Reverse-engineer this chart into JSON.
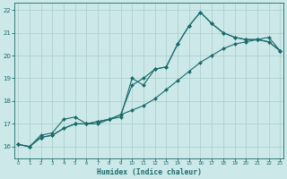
{
  "xlabel": "Humidex (Indice chaleur)",
  "xlim": [
    -0.3,
    23.3
  ],
  "ylim": [
    15.5,
    22.3
  ],
  "yticks": [
    16,
    17,
    18,
    19,
    20,
    21,
    22
  ],
  "xticks": [
    0,
    1,
    2,
    3,
    4,
    5,
    6,
    7,
    8,
    9,
    10,
    11,
    12,
    13,
    14,
    15,
    16,
    17,
    18,
    19,
    20,
    21,
    22,
    23
  ],
  "bg_color": "#cce8e8",
  "grid_color": "#aacccc",
  "line_color": "#1a6b6b",
  "curve1_x": [
    0,
    1,
    2,
    3,
    4,
    5,
    6,
    7,
    8,
    9,
    10,
    11,
    12,
    13,
    14,
    15,
    16,
    17,
    18,
    19,
    20,
    21,
    22,
    23
  ],
  "curve1_y": [
    16.1,
    16.0,
    16.5,
    16.6,
    17.2,
    17.3,
    17.0,
    17.0,
    17.2,
    17.3,
    19.0,
    18.7,
    19.4,
    19.5,
    20.5,
    21.3,
    21.9,
    21.4,
    21.0,
    20.8,
    20.7,
    20.7,
    20.6,
    20.2
  ],
  "curve2_x": [
    0,
    1,
    2,
    3,
    4,
    5,
    6,
    7,
    8,
    9,
    10,
    11,
    12,
    13,
    14,
    15,
    16,
    17,
    18,
    19,
    20,
    21,
    22,
    23
  ],
  "curve2_y": [
    16.1,
    16.0,
    16.4,
    16.5,
    16.8,
    17.0,
    17.0,
    17.1,
    17.2,
    17.4,
    17.6,
    17.8,
    18.1,
    18.5,
    18.9,
    19.3,
    19.7,
    20.0,
    20.3,
    20.5,
    20.6,
    20.7,
    20.8,
    20.2
  ],
  "curve3_x": [
    0,
    1,
    2,
    3,
    4,
    5,
    6,
    7,
    8,
    9,
    10,
    11,
    12,
    13,
    14,
    15,
    16,
    17,
    18,
    19,
    20,
    21,
    22,
    23
  ],
  "curve3_y": [
    16.1,
    16.0,
    16.4,
    16.5,
    16.8,
    17.0,
    17.0,
    17.1,
    17.2,
    17.4,
    18.7,
    19.0,
    19.4,
    19.5,
    20.5,
    21.3,
    21.9,
    21.4,
    21.0,
    20.8,
    20.7,
    20.7,
    20.6,
    20.2
  ]
}
